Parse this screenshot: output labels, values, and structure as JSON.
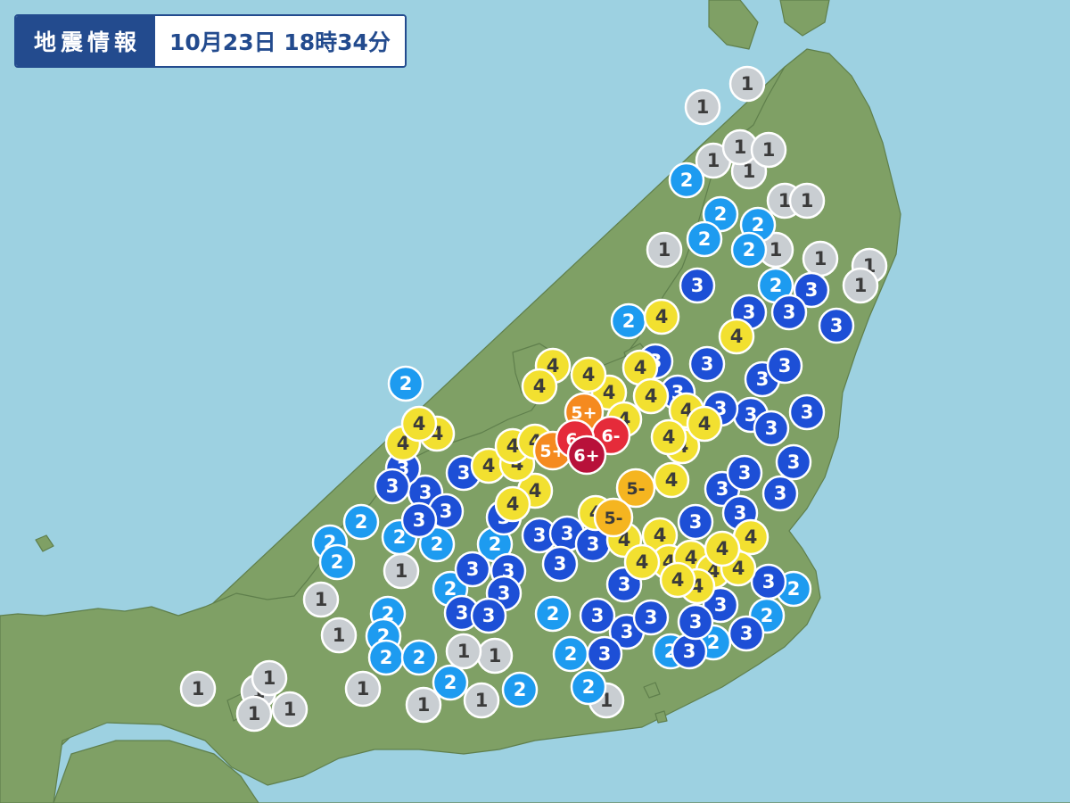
{
  "header": {
    "title": "地震情報",
    "datetime": "10月23日 18時34分"
  },
  "colors": {
    "sea": "#9dd1e1",
    "land": "#7fa065",
    "land_border": "#5f7f4c",
    "header_blue": "#234b8e"
  },
  "intensity_scale": {
    "1": {
      "fill": "#c9ced2",
      "text": "#3b3b3b"
    },
    "2": {
      "fill": "#1d9bf0",
      "text": "#ffffff"
    },
    "3": {
      "fill": "#1d4fd6",
      "text": "#ffffff"
    },
    "4": {
      "fill": "#f2e030",
      "text": "#3b3b3b"
    },
    "5-": {
      "fill": "#f5b520",
      "text": "#3b3b3b"
    },
    "5+": {
      "fill": "#f58a1f",
      "text": "#ffffff"
    },
    "6-": {
      "fill": "#e52b3a",
      "text": "#ffffff"
    },
    "6+": {
      "fill": "#b8113a",
      "text": "#ffffff"
    }
  },
  "observations": [
    {
      "i": "1",
      "lx": 838,
      "ly": 94
    },
    {
      "i": "1",
      "lx": 788,
      "ly": 120
    },
    {
      "i": "1",
      "lx": 800,
      "ly": 180
    },
    {
      "i": "1",
      "lx": 840,
      "ly": 192
    },
    {
      "i": "1",
      "lx": 830,
      "ly": 165
    },
    {
      "i": "1",
      "lx": 862,
      "ly": 168
    },
    {
      "i": "1",
      "lx": 880,
      "ly": 225
    },
    {
      "i": "1",
      "lx": 905,
      "ly": 225
    },
    {
      "i": "1",
      "lx": 745,
      "ly": 280
    },
    {
      "i": "1",
      "lx": 920,
      "ly": 290
    },
    {
      "i": "1",
      "lx": 975,
      "ly": 298
    },
    {
      "i": "1",
      "lx": 965,
      "ly": 320
    },
    {
      "i": "1",
      "lx": 870,
      "ly": 280
    },
    {
      "i": "2",
      "lx": 770,
      "ly": 202
    },
    {
      "i": "2",
      "lx": 850,
      "ly": 252
    },
    {
      "i": "2",
      "lx": 808,
      "ly": 240
    },
    {
      "i": "2",
      "lx": 790,
      "ly": 268
    },
    {
      "i": "2",
      "lx": 840,
      "ly": 280
    },
    {
      "i": "2",
      "lx": 705,
      "ly": 360
    },
    {
      "i": "2",
      "lx": 870,
      "ly": 320
    },
    {
      "i": "2",
      "lx": 455,
      "ly": 430
    },
    {
      "i": "3",
      "lx": 782,
      "ly": 320
    },
    {
      "i": "3",
      "lx": 910,
      "ly": 325
    },
    {
      "i": "3",
      "lx": 938,
      "ly": 365
    },
    {
      "i": "3",
      "lx": 885,
      "ly": 350
    },
    {
      "i": "3",
      "lx": 840,
      "ly": 350
    },
    {
      "i": "3",
      "lx": 793,
      "ly": 408
    },
    {
      "i": "3",
      "lx": 855,
      "ly": 425
    },
    {
      "i": "3",
      "lx": 880,
      "ly": 410
    },
    {
      "i": "3",
      "lx": 905,
      "ly": 462
    },
    {
      "i": "3",
      "lx": 842,
      "ly": 465
    },
    {
      "i": "3",
      "lx": 865,
      "ly": 480
    },
    {
      "i": "3",
      "lx": 808,
      "ly": 458
    },
    {
      "i": "3",
      "lx": 890,
      "ly": 518
    },
    {
      "i": "3",
      "lx": 875,
      "ly": 553
    },
    {
      "i": "3",
      "lx": 810,
      "ly": 548
    },
    {
      "i": "3",
      "lx": 835,
      "ly": 530
    },
    {
      "i": "3",
      "lx": 735,
      "ly": 405
    },
    {
      "i": "3",
      "lx": 760,
      "ly": 440
    },
    {
      "i": "3",
      "lx": 780,
      "ly": 585
    },
    {
      "i": "3",
      "lx": 830,
      "ly": 575
    },
    {
      "i": "4",
      "lx": 742,
      "ly": 355
    },
    {
      "i": "4",
      "lx": 826,
      "ly": 377
    },
    {
      "i": "4",
      "lx": 620,
      "ly": 410
    },
    {
      "i": "4",
      "lx": 605,
      "ly": 433
    },
    {
      "i": "4",
      "lx": 718,
      "ly": 412
    },
    {
      "i": "4",
      "lx": 730,
      "ly": 444
    },
    {
      "i": "4",
      "lx": 765,
      "ly": 500
    },
    {
      "i": "4",
      "lx": 753,
      "ly": 538
    },
    {
      "i": "4",
      "lx": 683,
      "ly": 440
    },
    {
      "i": "4",
      "lx": 660,
      "ly": 420
    },
    {
      "i": "4",
      "lx": 770,
      "ly": 460
    },
    {
      "i": "4",
      "lx": 790,
      "ly": 475
    },
    {
      "i": "4",
      "lx": 750,
      "ly": 490
    },
    {
      "i": "4",
      "lx": 700,
      "ly": 470
    },
    {
      "i": "5+",
      "lx": 655,
      "ly": 462
    },
    {
      "i": "6-",
      "lx": 685,
      "ly": 488
    },
    {
      "i": "6+",
      "lx": 658,
      "ly": 510
    },
    {
      "i": "5+",
      "lx": 620,
      "ly": 505
    },
    {
      "i": "6-",
      "lx": 645,
      "ly": 492
    },
    {
      "i": "4",
      "lx": 600,
      "ly": 550
    },
    {
      "i": "4",
      "lx": 575,
      "ly": 565
    },
    {
      "i": "4",
      "lx": 548,
      "ly": 522
    },
    {
      "i": "4",
      "lx": 580,
      "ly": 520
    },
    {
      "i": "4",
      "lx": 575,
      "ly": 500
    },
    {
      "i": "4",
      "lx": 600,
      "ly": 495
    },
    {
      "i": "4",
      "lx": 490,
      "ly": 486
    },
    {
      "i": "4",
      "lx": 452,
      "ly": 497
    },
    {
      "i": "4",
      "lx": 470,
      "ly": 475
    },
    {
      "i": "5-",
      "lx": 713,
      "ly": 547
    },
    {
      "i": "5-",
      "lx": 688,
      "ly": 580
    },
    {
      "i": "4",
      "lx": 668,
      "ly": 575
    },
    {
      "i": "4",
      "lx": 700,
      "ly": 605
    },
    {
      "i": "4",
      "lx": 740,
      "ly": 600
    },
    {
      "i": "4",
      "lx": 750,
      "ly": 630
    },
    {
      "i": "4",
      "lx": 775,
      "ly": 625
    },
    {
      "i": "4",
      "lx": 800,
      "ly": 640
    },
    {
      "i": "4",
      "lx": 842,
      "ly": 602
    },
    {
      "i": "4",
      "lx": 828,
      "ly": 637
    },
    {
      "i": "4",
      "lx": 782,
      "ly": 657
    },
    {
      "i": "4",
      "lx": 760,
      "ly": 650
    },
    {
      "i": "4",
      "lx": 720,
      "ly": 630
    },
    {
      "i": "4",
      "lx": 810,
      "ly": 615
    },
    {
      "i": "3",
      "lx": 520,
      "ly": 530
    },
    {
      "i": "3",
      "lx": 477,
      "ly": 552
    },
    {
      "i": "3",
      "lx": 452,
      "ly": 525
    },
    {
      "i": "3",
      "lx": 440,
      "ly": 545
    },
    {
      "i": "3",
      "lx": 500,
      "ly": 573
    },
    {
      "i": "3",
      "lx": 470,
      "ly": 583
    },
    {
      "i": "3",
      "lx": 565,
      "ly": 580
    },
    {
      "i": "3",
      "lx": 605,
      "ly": 600
    },
    {
      "i": "3",
      "lx": 636,
      "ly": 598
    },
    {
      "i": "3",
      "lx": 570,
      "ly": 640
    },
    {
      "i": "3",
      "lx": 530,
      "ly": 638
    },
    {
      "i": "3",
      "lx": 628,
      "ly": 632
    },
    {
      "i": "3",
      "lx": 565,
      "ly": 665
    },
    {
      "i": "3",
      "lx": 518,
      "ly": 687
    },
    {
      "i": "3",
      "lx": 548,
      "ly": 690
    },
    {
      "i": "3",
      "lx": 665,
      "ly": 610
    },
    {
      "i": "3",
      "lx": 700,
      "ly": 655
    },
    {
      "i": "3",
      "lx": 670,
      "ly": 690
    },
    {
      "i": "3",
      "lx": 703,
      "ly": 708
    },
    {
      "i": "3",
      "lx": 678,
      "ly": 733
    },
    {
      "i": "3",
      "lx": 730,
      "ly": 692
    },
    {
      "i": "3",
      "lx": 773,
      "ly": 730
    },
    {
      "i": "3",
      "lx": 837,
      "ly": 710
    },
    {
      "i": "3",
      "lx": 862,
      "ly": 652
    },
    {
      "i": "3",
      "lx": 808,
      "ly": 678
    },
    {
      "i": "3",
      "lx": 780,
      "ly": 697
    },
    {
      "i": "2",
      "lx": 405,
      "ly": 585
    },
    {
      "i": "2",
      "lx": 370,
      "ly": 608
    },
    {
      "i": "2",
      "lx": 378,
      "ly": 630
    },
    {
      "i": "2",
      "lx": 448,
      "ly": 602
    },
    {
      "i": "2",
      "lx": 490,
      "ly": 610
    },
    {
      "i": "2",
      "lx": 435,
      "ly": 688
    },
    {
      "i": "2",
      "lx": 430,
      "ly": 713
    },
    {
      "i": "2",
      "lx": 433,
      "ly": 737
    },
    {
      "i": "2",
      "lx": 470,
      "ly": 737
    },
    {
      "i": "2",
      "lx": 505,
      "ly": 765
    },
    {
      "i": "2",
      "lx": 583,
      "ly": 773
    },
    {
      "i": "2",
      "lx": 640,
      "ly": 733
    },
    {
      "i": "2",
      "lx": 660,
      "ly": 770
    },
    {
      "i": "2",
      "lx": 620,
      "ly": 688
    },
    {
      "i": "2",
      "lx": 505,
      "ly": 660
    },
    {
      "i": "2",
      "lx": 555,
      "ly": 610
    },
    {
      "i": "2",
      "lx": 890,
      "ly": 660
    },
    {
      "i": "2",
      "lx": 752,
      "ly": 730
    },
    {
      "i": "2",
      "lx": 860,
      "ly": 690
    },
    {
      "i": "2",
      "lx": 800,
      "ly": 720
    },
    {
      "i": "1",
      "lx": 360,
      "ly": 672
    },
    {
      "i": "1",
      "lx": 380,
      "ly": 712
    },
    {
      "i": "1",
      "lx": 407,
      "ly": 772
    },
    {
      "i": "1",
      "lx": 450,
      "ly": 640
    },
    {
      "i": "1",
      "lx": 222,
      "ly": 772
    },
    {
      "i": "1",
      "lx": 290,
      "ly": 775
    },
    {
      "i": "1",
      "lx": 325,
      "ly": 795
    },
    {
      "i": "1",
      "lx": 302,
      "ly": 760
    },
    {
      "i": "1",
      "lx": 285,
      "ly": 800
    },
    {
      "i": "1",
      "lx": 555,
      "ly": 735
    },
    {
      "i": "1",
      "lx": 520,
      "ly": 730
    },
    {
      "i": "1",
      "lx": 475,
      "ly": 790
    },
    {
      "i": "1",
      "lx": 540,
      "ly": 785
    },
    {
      "i": "1",
      "lx": 680,
      "ly": 785
    }
  ]
}
